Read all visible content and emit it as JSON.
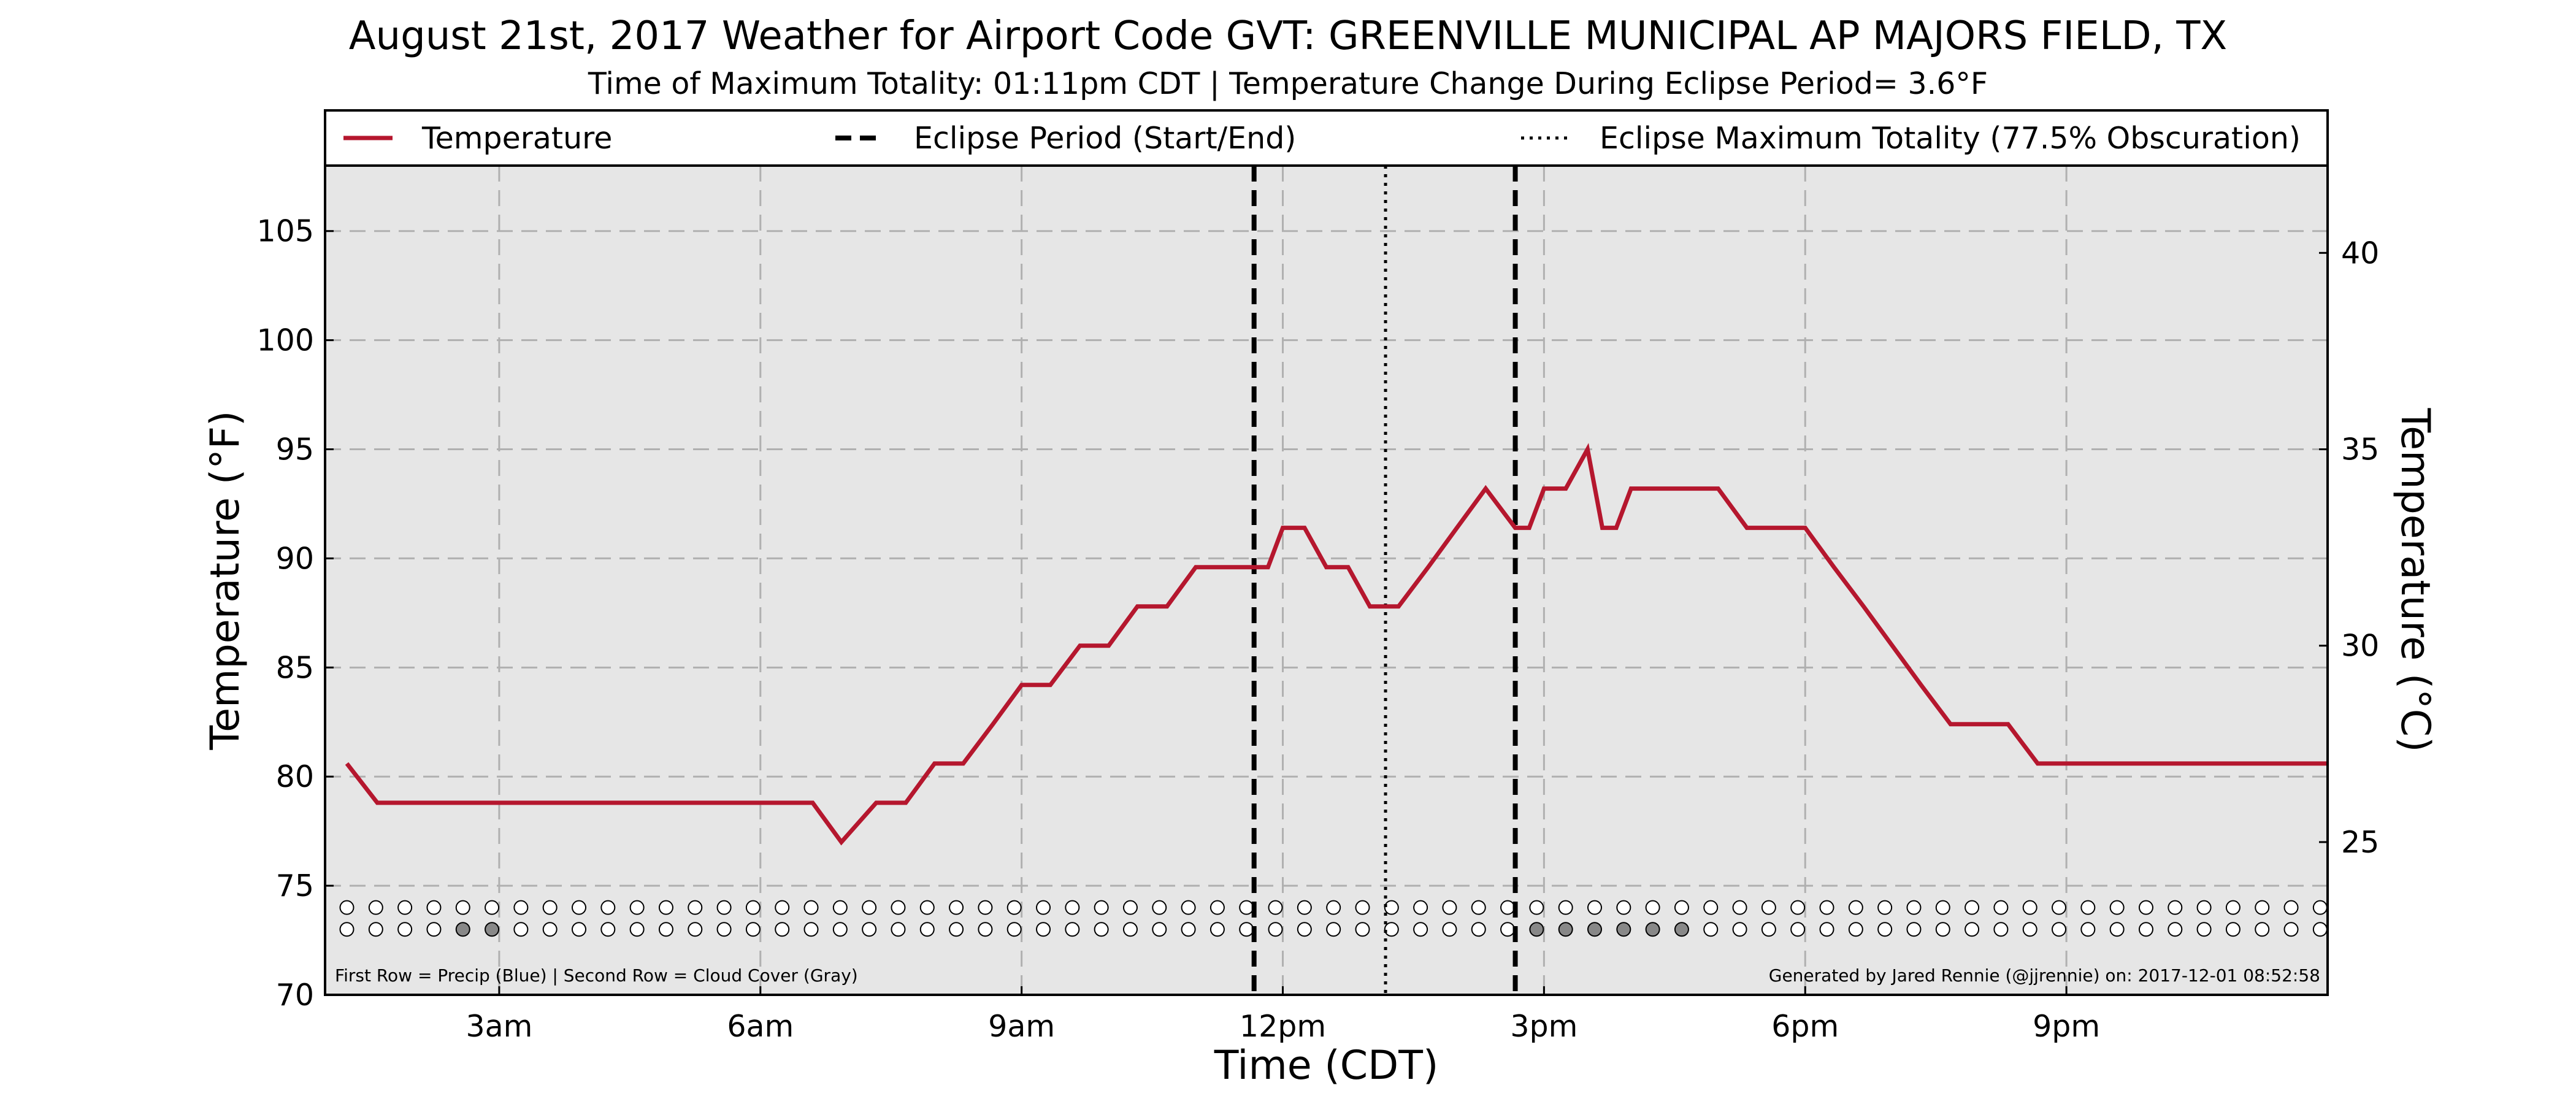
{
  "title": "August 21st, 2017 Weather for Airport Code GVT: GREENVILLE MUNICIPAL AP MAJORS FIELD, TX",
  "subtitle": "Time of Maximum Totality: 01:11pm CDT | Temperature Change During Eclipse Period= 3.6°F",
  "footer_left": "First Row = Precip (Blue) | Second Row = Cloud Cover (Gray)",
  "footer_right": "Generated by Jared Rennie (@jjrennie) on: 2017-12-01 08:52:58",
  "colors": {
    "temperature": "#b5172e",
    "plot_bg": "#e6e6e6",
    "cloud": "#888888"
  },
  "legend": [
    {
      "label": "Temperature",
      "style": "solid",
      "color": "#b5172e"
    },
    {
      "label": "Eclipse Period (Start/End)",
      "style": "dashed",
      "color": "#000000"
    },
    {
      "label": "Eclipse Maximum Totality (77.5% Obscuration)",
      "style": "dotted",
      "color": "#000000"
    }
  ],
  "chart_data": {
    "type": "line",
    "xlabel": "Time (CDT)",
    "ylabel": "Temperature (°F)",
    "ylabel_right": "Temperature (°C)",
    "xlim": [
      1.0,
      24.0
    ],
    "ylim": [
      70,
      108
    ],
    "x_ticks": [
      3,
      6,
      9,
      12,
      15,
      18,
      21
    ],
    "x_tick_labels": [
      "3am",
      "6am",
      "9am",
      "12pm",
      "3pm",
      "6pm",
      "9pm"
    ],
    "y_ticks": [
      70,
      75,
      80,
      85,
      90,
      95,
      100,
      105
    ],
    "y_ticks_right": [
      25,
      30,
      35,
      40
    ],
    "grid": true,
    "legend_position": "top",
    "series": [
      {
        "name": "Temperature",
        "x": [
          1.25,
          1.6,
          2.0,
          2.5,
          3.0,
          3.5,
          4.0,
          4.5,
          5.0,
          5.5,
          6.0,
          6.3,
          6.6,
          6.93,
          7.33,
          7.67,
          8.0,
          8.33,
          8.67,
          9.0,
          9.33,
          9.67,
          10.0,
          10.33,
          10.67,
          11.0,
          11.33,
          11.67,
          11.83,
          12.0,
          12.25,
          12.5,
          12.75,
          13.0,
          13.17,
          13.33,
          13.67,
          14.0,
          14.33,
          14.67,
          14.83,
          15.0,
          15.25,
          15.5,
          15.67,
          15.83,
          16.0,
          16.3,
          16.67,
          17.0,
          17.33,
          17.67,
          18.0,
          18.33,
          18.67,
          19.0,
          19.33,
          19.67,
          20.0,
          20.33,
          20.67,
          21.0,
          21.33,
          21.67,
          22.0,
          22.5,
          23.0,
          23.5,
          24.0
        ],
        "values": [
          80.6,
          78.8,
          78.8,
          78.8,
          78.8,
          78.8,
          78.8,
          78.8,
          78.8,
          78.8,
          78.8,
          78.8,
          78.8,
          77.0,
          78.8,
          78.8,
          80.6,
          80.6,
          82.4,
          84.2,
          84.2,
          86.0,
          86.0,
          87.8,
          87.8,
          89.6,
          89.6,
          89.6,
          89.6,
          91.4,
          91.4,
          89.6,
          89.6,
          87.8,
          87.8,
          87.8,
          89.6,
          91.4,
          93.2,
          91.4,
          91.4,
          93.2,
          93.2,
          95.0,
          91.4,
          91.4,
          93.2,
          93.2,
          93.2,
          93.2,
          91.4,
          91.4,
          91.4,
          89.6,
          87.8,
          86.0,
          84.2,
          82.4,
          82.4,
          82.4,
          80.6,
          80.6,
          80.6,
          80.6,
          80.6,
          80.6,
          80.6,
          80.6,
          80.6
        ]
      }
    ],
    "eclipse_start": 11.67,
    "eclipse_max": 13.18,
    "eclipse_end": 14.67,
    "precip_row": {
      "y": 74.0,
      "x_start": 1.25,
      "x_step": 0.3333,
      "count": 69,
      "filled_indices": []
    },
    "cloud_row": {
      "y": 73.0,
      "x_start": 1.25,
      "x_step": 0.3333,
      "count": 69,
      "filled_indices": [
        4,
        5,
        41,
        42,
        43,
        44,
        45,
        46
      ]
    }
  }
}
